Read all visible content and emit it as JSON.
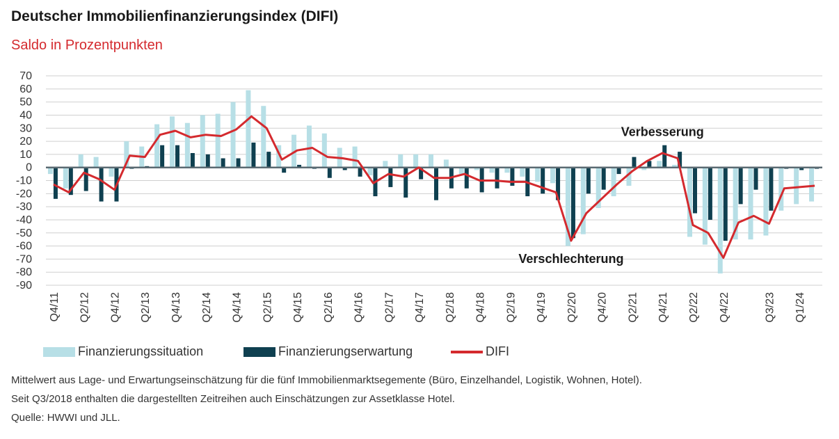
{
  "title": "Deutscher Immobilienfinanzierungsindex (DIFI)",
  "subtitle": "Saldo in Prozentpunkten",
  "notes": [
    "Mittelwert aus Lage- und Erwartungseinschätzung für die fünf Immobilienmarktsegemente (Büro, Einzelhandel, Logistik, Wohnen, Hotel).",
    "Seit Q3/2018 enthalten die dargestellten Zeitreihen auch Einschätzungen zur Assetklasse Hotel.",
    "Quelle: HWWI und JLL."
  ],
  "colors": {
    "situation": "#b7dfe6",
    "erwartung": "#0f4050",
    "difi": "#d42a2e"
  },
  "chart_data": {
    "type": "bar",
    "categories": [
      "Q4/11",
      "Q1/12",
      "Q2/12",
      "Q3/12",
      "Q4/12",
      "Q1/13",
      "Q2/13",
      "Q3/13",
      "Q4/13",
      "Q1/14",
      "Q2/14",
      "Q3/14",
      "Q4/14",
      "Q1/15",
      "Q2/15",
      "Q3/15",
      "Q4/15",
      "Q1/16",
      "Q2/16",
      "Q3/16",
      "Q4/16",
      "Q1/17",
      "Q2/17",
      "Q3/17",
      "Q4/17",
      "Q1/18",
      "Q2/18",
      "Q3/18",
      "Q4/18",
      "Q1/19",
      "Q2/19",
      "Q3/19",
      "Q4/19",
      "Q1/20",
      "Q2/20",
      "Q3/20",
      "Q4/20",
      "Q1/21",
      "Q2/21",
      "Q3/21",
      "Q4/21",
      "Q1/22",
      "Q2/22",
      "Q3/22",
      "Q4/22",
      "Q1/23",
      "Q2/23",
      "Q3/23",
      "Q4/23",
      "Q1/24",
      "Q2/24"
    ],
    "tick_labels": [
      "Q4/11",
      "Q2/12",
      "Q4/12",
      "Q2/13",
      "Q4/13",
      "Q2/14",
      "Q4/14",
      "Q2/15",
      "Q4/15",
      "Q2/16",
      "Q4/16",
      "Q2/17",
      "Q4/17",
      "Q2/18",
      "Q4/18",
      "Q2/19",
      "Q4/19",
      "Q2/20",
      "Q4/20",
      "Q2/21",
      "Q4/21",
      "Q2/22",
      "Q4/22",
      "Q3/23",
      "Q1/24"
    ],
    "tick_index": [
      0,
      2,
      4,
      6,
      8,
      10,
      12,
      14,
      16,
      18,
      20,
      22,
      24,
      26,
      28,
      30,
      32,
      34,
      36,
      38,
      40,
      42,
      44,
      47,
      49
    ],
    "series": [
      {
        "name": "Finanzierungssituation",
        "kind": "bar",
        "values": [
          -5,
          -16,
          10,
          8,
          -7,
          20,
          16,
          33,
          39,
          34,
          40,
          41,
          50,
          59,
          47,
          17,
          25,
          32,
          26,
          15,
          16,
          -6,
          5,
          10,
          10,
          10,
          6,
          -5,
          -2,
          -4,
          -4,
          -7,
          -11,
          -12,
          -60,
          -51,
          -31,
          -22,
          -14,
          -2,
          5,
          2,
          -53,
          -59,
          -81,
          -55,
          -55,
          -52,
          -33,
          -28,
          -26
        ]
      },
      {
        "name": "Finanzierungserwartung",
        "kind": "bar",
        "values": [
          -24,
          -21,
          -18,
          -26,
          -26,
          -1,
          1,
          17,
          17,
          11,
          10,
          7,
          7,
          19,
          12,
          -4,
          2,
          -1,
          -8,
          -2,
          -7,
          -22,
          -15,
          -23,
          -9,
          -25,
          -16,
          -16,
          -19,
          -16,
          -14,
          -22,
          -20,
          -25,
          -54,
          -20,
          -17,
          -5,
          8,
          5,
          17,
          12,
          -35,
          -40,
          -56,
          -28,
          -17,
          -33,
          -1,
          -2,
          -1
        ]
      },
      {
        "name": "DIFI",
        "kind": "line",
        "values": [
          -13,
          -19,
          -4,
          -9,
          -17,
          9,
          8,
          25,
          28,
          23,
          25,
          24,
          29,
          39,
          30,
          6,
          13,
          15,
          8,
          7,
          5,
          -12,
          -5,
          -7,
          0,
          -8,
          -8,
          -5,
          -10,
          -10,
          -11,
          -11,
          -15,
          -19,
          -56,
          -35,
          -24,
          -13,
          -3,
          5,
          11,
          7,
          -44,
          -50,
          -69,
          -42,
          -37,
          -43,
          -16,
          -15,
          -14
        ]
      }
    ],
    "ylim": [
      -90,
      70
    ],
    "yticks": [
      70,
      60,
      50,
      40,
      30,
      20,
      10,
      0,
      -10,
      -20,
      -30,
      -40,
      -50,
      -60,
      -70,
      -80,
      -90
    ],
    "grid": true,
    "legend_position": "bottom",
    "annotations": [
      {
        "text": "Verbesserung",
        "x": "Q4/21",
        "y": 24
      },
      {
        "text": "Verschlechterung",
        "x": "Q2/20",
        "y": -73
      }
    ]
  },
  "legend": {
    "situation_label": "Finanzierungssituation",
    "erwartung_label": "Finanzierungserwartung",
    "difi_label": "DIFI"
  }
}
